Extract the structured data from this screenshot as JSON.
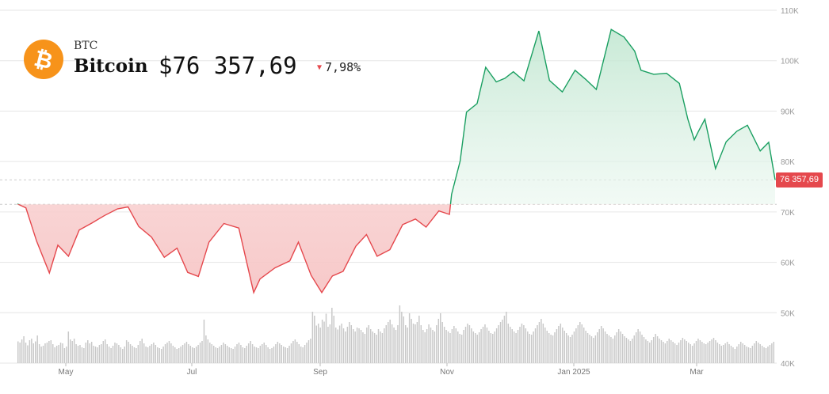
{
  "header": {
    "ticker": "BTC",
    "name": "Bitcoin",
    "price": "$76 357,69",
    "change": "7,98%",
    "change_direction": "down"
  },
  "icons": {
    "coin": "bitcoin-icon",
    "change_arrow": "triangle-down-icon"
  },
  "price_tag": "76 357,69",
  "colors": {
    "up_line": "#1a9f61",
    "down_line": "#e5484d",
    "up_fill": "#dff3e8",
    "down_fill": "#fbe3e3",
    "volume": "#c8c8c8",
    "grid": "#e6e6e6",
    "axis_text": "#999999",
    "brand": "#f7931a"
  },
  "chart_data": [
    {
      "type": "line",
      "title": "",
      "xlabel": "",
      "ylabel": "",
      "x_ticks": [
        "May",
        "Jul",
        "Sep",
        "Nov",
        "Jan 2025",
        "Mar"
      ],
      "y_ticks": [
        "40K",
        "50K",
        "60K",
        "70K",
        "80K",
        "90K",
        "100K",
        "110K"
      ],
      "y_tick_values": [
        40000,
        50000,
        60000,
        70000,
        80000,
        90000,
        100000,
        110000
      ],
      "ylim": [
        40000,
        110000
      ],
      "xlim": [
        "2024-04-16",
        "2025-04-07"
      ],
      "baseline": 71500,
      "last_value": 76357.69,
      "grid": true,
      "x": [
        "2024-04-16",
        "2024-04-20",
        "2024-04-25",
        "2024-05-01",
        "2024-05-05",
        "2024-05-10",
        "2024-05-15",
        "2024-05-21",
        "2024-05-27",
        "2024-06-02",
        "2024-06-07",
        "2024-06-12",
        "2024-06-18",
        "2024-06-24",
        "2024-06-30",
        "2024-07-05",
        "2024-07-10",
        "2024-07-15",
        "2024-07-22",
        "2024-07-29",
        "2024-08-05",
        "2024-08-08",
        "2024-08-15",
        "2024-08-22",
        "2024-08-26",
        "2024-09-01",
        "2024-09-06",
        "2024-09-11",
        "2024-09-16",
        "2024-09-22",
        "2024-09-27",
        "2024-10-02",
        "2024-10-08",
        "2024-10-14",
        "2024-10-20",
        "2024-10-25",
        "2024-10-31",
        "2024-11-05",
        "2024-11-06",
        "2024-11-10",
        "2024-11-13",
        "2024-11-18",
        "2024-11-22",
        "2024-11-27",
        "2024-12-01",
        "2024-12-05",
        "2024-12-10",
        "2024-12-17",
        "2024-12-22",
        "2024-12-28",
        "2025-01-03",
        "2025-01-08",
        "2025-01-13",
        "2025-01-20",
        "2025-01-26",
        "2025-01-31",
        "2025-02-03",
        "2025-02-09",
        "2025-02-15",
        "2025-02-21",
        "2025-02-25",
        "2025-02-28",
        "2025-03-02",
        "2025-03-05",
        "2025-03-10",
        "2025-03-15",
        "2025-03-20",
        "2025-03-25",
        "2025-03-31",
        "2025-04-04",
        "2025-04-07"
      ],
      "series": [
        {
          "values": [
            71600,
            70800,
            64200,
            57900,
            63400,
            61200,
            66400,
            67800,
            69300,
            70600,
            71000,
            67100,
            65000,
            61000,
            62800,
            58000,
            57200,
            64000,
            67700,
            66800,
            54000,
            56700,
            58900,
            60300,
            64000,
            57400,
            54000,
            57300,
            58200,
            63200,
            65500,
            61200,
            62500,
            67500,
            68600,
            67000,
            70200,
            69500,
            73500,
            80100,
            89800,
            91500,
            98700,
            95800,
            96500,
            97800,
            96000,
            105900,
            96100,
            93800,
            98100,
            96300,
            94300,
            106200,
            104700,
            101900,
            98100,
            97300,
            97500,
            95500,
            88400,
            84300,
            86000,
            88400,
            78600,
            83900,
            86000,
            87200,
            82100,
            83800,
            76357.69
          ]
        }
      ]
    },
    {
      "type": "bar",
      "title": "",
      "xlabel": "",
      "ylabel": "",
      "x_start": "2024-04-16",
      "x_end": "2025-04-07",
      "values": [
        55,
        52,
        60,
        68,
        52,
        45,
        58,
        62,
        50,
        55,
        70,
        48,
        42,
        44,
        50,
        52,
        56,
        58,
        48,
        40,
        44,
        46,
        52,
        50,
        38,
        42,
        80,
        60,
        56,
        62,
        48,
        44,
        46,
        40,
        38,
        52,
        58,
        50,
        54,
        44,
        42,
        40,
        46,
        48,
        56,
        60,
        48,
        42,
        38,
        44,
        52,
        50,
        46,
        40,
        36,
        42,
        58,
        54,
        48,
        44,
        40,
        38,
        46,
        56,
        62,
        50,
        42,
        40,
        44,
        48,
        52,
        46,
        40,
        38,
        36,
        42,
        48,
        52,
        56,
        50,
        44,
        40,
        36,
        38,
        42,
        46,
        50,
        54,
        48,
        44,
        40,
        38,
        42,
        46,
        52,
        56,
        110,
        70,
        60,
        52,
        48,
        44,
        40,
        38,
        42,
        46,
        52,
        48,
        44,
        40,
        38,
        36,
        42,
        48,
        52,
        46,
        40,
        38,
        44,
        50,
        56,
        48,
        42,
        40,
        38,
        44,
        48,
        52,
        46,
        40,
        36,
        38,
        42,
        48,
        54,
        50,
        46,
        42,
        40,
        38,
        44,
        50,
        56,
        60,
        54,
        48,
        42,
        40,
        46,
        52,
        58,
        62,
        130,
        120,
        95,
        100,
        90,
        110,
        105,
        125,
        92,
        98,
        140,
        120,
        90,
        85,
        95,
        100,
        88,
        80,
        92,
        104,
        96,
        86,
        80,
        90,
        88,
        84,
        78,
        74,
        90,
        96,
        86,
        80,
        76,
        72,
        86,
        80,
        76,
        88,
        96,
        104,
        110,
        98,
        90,
        84,
        96,
        146,
        130,
        118,
        96,
        90,
        126,
        112,
        100,
        98,
        104,
        120,
        96,
        84,
        78,
        86,
        98,
        90,
        84,
        80,
        96,
        112,
        126,
        104,
        92,
        84,
        80,
        76,
        86,
        94,
        88,
        80,
        74,
        72,
        84,
        92,
        100,
        96,
        88,
        80,
        76,
        72,
        78,
        86,
        92,
        98,
        90,
        82,
        76,
        74,
        80,
        88,
        96,
        104,
        110,
        120,
        130,
        100,
        92,
        86,
        80,
        76,
        84,
        92,
        100,
        96,
        88,
        80,
        74,
        72,
        80,
        88,
        96,
        104,
        112,
        100,
        90,
        82,
        76,
        72,
        70,
        78,
        86,
        94,
        100,
        90,
        82,
        76,
        70,
        66,
        72,
        80,
        88,
        96,
        104,
        98,
        90,
        82,
        76,
        72,
        68,
        64,
        70,
        78,
        86,
        94,
        88,
        80,
        74,
        70,
        66,
        62,
        70,
        78,
        86,
        80,
        74,
        68,
        64,
        60,
        56,
        62,
        70,
        78,
        86,
        80,
        72,
        66,
        60,
        56,
        52,
        58,
        66,
        74,
        68,
        62,
        58,
        54,
        50,
        56,
        62,
        58,
        54,
        50,
        46,
        52,
        58,
        64,
        60,
        56,
        52,
        48,
        44,
        50,
        56,
        62,
        58,
        54,
        50,
        48,
        52,
        56,
        60,
        64,
        58,
        52,
        48,
        44,
        46,
        50,
        54,
        48,
        44,
        40,
        36,
        42,
        48,
        54,
        50,
        46,
        42,
        40,
        38,
        44,
        50,
        56,
        52,
        48,
        44,
        40,
        38,
        42,
        46,
        50,
        54
      ]
    }
  ]
}
